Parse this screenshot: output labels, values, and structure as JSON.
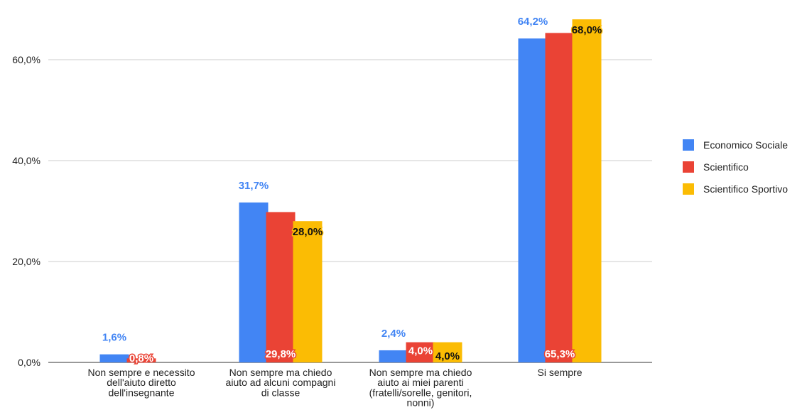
{
  "chart_data": {
    "type": "bar",
    "categories": [
      [
        "Non sempre e necessito",
        "dell'aiuto diretto",
        "dell'insegnante"
      ],
      [
        "Non sempre ma chiedo",
        "aiuto ad alcuni compagni",
        "di classe"
      ],
      [
        "Non sempre ma chiedo",
        "aiuto ai miei parenti",
        "(fratelli/sorelle, genitori,",
        "nonni)"
      ],
      [
        "Si sempre"
      ]
    ],
    "series": [
      {
        "name": "Economico Sociale",
        "color": "#4285f4",
        "values": [
          1.6,
          31.7,
          2.4,
          64.2
        ],
        "labels": [
          "1,6%",
          "31,7%",
          "2,4%",
          "64,2%"
        ]
      },
      {
        "name": "Scientifico",
        "color": "#ea4335",
        "values": [
          0.8,
          29.8,
          4.0,
          65.3
        ],
        "labels": [
          "0,8%",
          "29,8%",
          "4,0%",
          "65,3%"
        ]
      },
      {
        "name": "Scientifico Sportivo",
        "color": "#fbbc04",
        "values": [
          0.0,
          28.0,
          4.0,
          68.0
        ],
        "labels": [
          "",
          "28,0%",
          "4,0%",
          "68,0%"
        ]
      }
    ],
    "yticks": [
      "0,0%",
      "20,0%",
      "40,0%",
      "60,0%"
    ],
    "ytick_values": [
      0,
      20,
      40,
      60
    ],
    "ylim": [
      0,
      68
    ],
    "grid": true,
    "legend_position": "right",
    "title": "",
    "xlabel": "",
    "ylabel": ""
  }
}
